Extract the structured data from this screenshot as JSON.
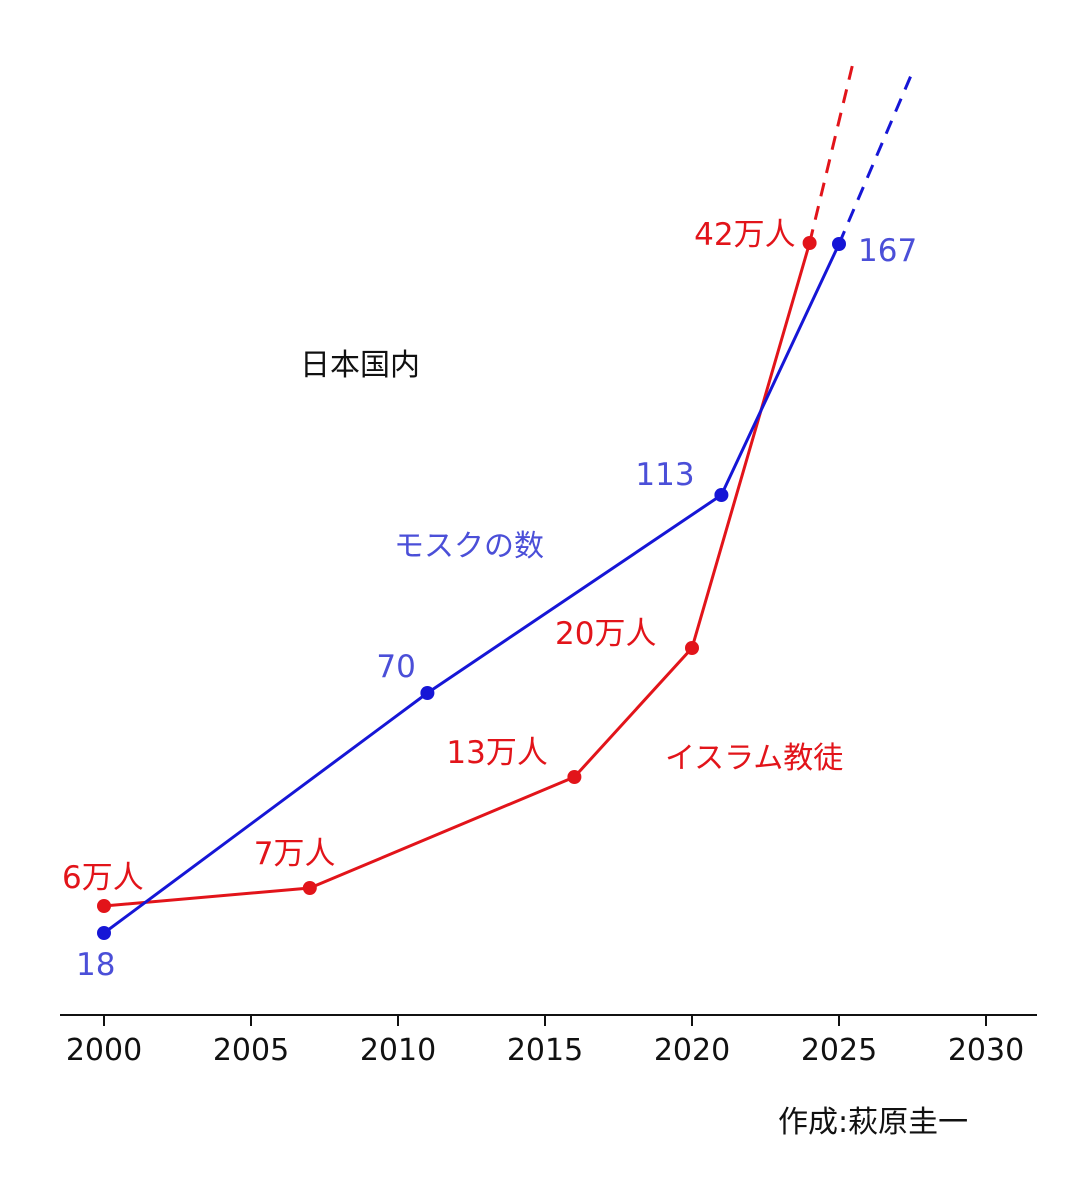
{
  "chart_data": {
    "type": "line",
    "region_label": "日本国内",
    "credit": "作成:萩原圭一",
    "xticks": [
      2000,
      2005,
      2010,
      2015,
      2020,
      2025,
      2030
    ],
    "xlim": [
      1998.5,
      2031.8
    ],
    "ylim": [
      0,
      500000
    ],
    "y_axis_shown": false,
    "grid": false,
    "series": [
      {
        "key": "muslims",
        "name": "イスラム教徒",
        "color": "#e2141a",
        "points": [
          {
            "x": 2000,
            "label": "6万人"
          },
          {
            "x": 2007,
            "label": "7万人"
          },
          {
            "x": 2016,
            "label": "13万人"
          },
          {
            "x": 2020,
            "label": "20万人"
          },
          {
            "x": 2024,
            "label": "42万人"
          }
        ],
        "values": [
          60000,
          70000,
          130000,
          200000,
          420000
        ],
        "projection": {
          "style": "dashed",
          "to": {
            "x": 2025.5,
            "y": 520000
          }
        }
      },
      {
        "key": "mosques",
        "name": "モスクの数",
        "color": "#1616d6",
        "label_color": "#4b4fd8",
        "points": [
          {
            "x": 2000,
            "label": "18"
          },
          {
            "x": 2011,
            "label": "70"
          },
          {
            "x": 2021,
            "label": "113"
          },
          {
            "x": 2025,
            "label": "167"
          }
        ],
        "values": [
          18,
          70,
          113,
          167
        ],
        "projection": {
          "style": "dashed",
          "to": {
            "x": 2027.5,
            "y": 238
          }
        }
      }
    ]
  }
}
